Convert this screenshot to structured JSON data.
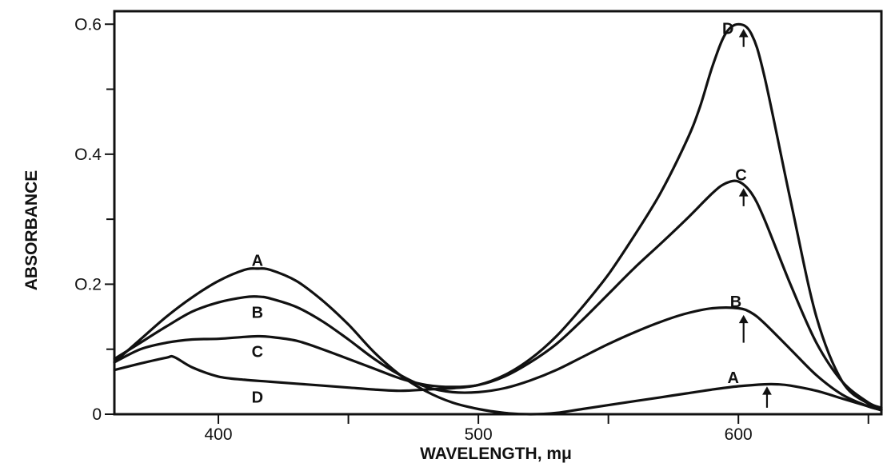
{
  "chart_data": {
    "type": "line",
    "xlabel": "WAVELENGTH, mμ",
    "ylabel": "ABSORBANCE",
    "xlim": [
      360,
      655
    ],
    "ylim": [
      0,
      0.62
    ],
    "x_ticks": [
      400,
      500,
      600
    ],
    "x_minor_ticks": [
      450,
      550,
      650
    ],
    "y_ticks": [
      {
        "value": 0,
        "label": "0"
      },
      {
        "value": 0.2,
        "label": "O.2"
      },
      {
        "value": 0.4,
        "label": "O.4"
      },
      {
        "value": 0.6,
        "label": "O.6"
      }
    ],
    "y_minor_ticks": [
      0.1,
      0.3,
      0.5
    ],
    "grid": false,
    "legend": "none",
    "series": [
      {
        "name": "A",
        "x": [
          360,
          370,
          380,
          390,
          400,
          410,
          415,
          420,
          430,
          440,
          450,
          460,
          470,
          480,
          490,
          500,
          510,
          520,
          530,
          540,
          550,
          560,
          570,
          580,
          590,
          600,
          610,
          615,
          620,
          630,
          640,
          650,
          655
        ],
        "y": [
          0.08,
          0.115,
          0.15,
          0.18,
          0.205,
          0.222,
          0.224,
          0.222,
          0.205,
          0.175,
          0.138,
          0.095,
          0.06,
          0.035,
          0.018,
          0.008,
          0.002,
          0.0,
          0.002,
          0.008,
          0.014,
          0.02,
          0.026,
          0.032,
          0.038,
          0.043,
          0.046,
          0.046,
          0.044,
          0.036,
          0.024,
          0.012,
          0.006
        ]
      },
      {
        "name": "B",
        "x": [
          360,
          370,
          380,
          390,
          400,
          410,
          415,
          420,
          430,
          440,
          450,
          460,
          470,
          480,
          490,
          500,
          510,
          520,
          530,
          540,
          550,
          560,
          570,
          580,
          590,
          600,
          605,
          610,
          620,
          630,
          640,
          650,
          655
        ],
        "y": [
          0.085,
          0.11,
          0.135,
          0.158,
          0.172,
          0.18,
          0.181,
          0.178,
          0.165,
          0.143,
          0.115,
          0.085,
          0.06,
          0.042,
          0.034,
          0.034,
          0.04,
          0.052,
          0.068,
          0.088,
          0.108,
          0.126,
          0.142,
          0.155,
          0.163,
          0.163,
          0.156,
          0.14,
          0.1,
          0.06,
          0.03,
          0.012,
          0.007
        ]
      },
      {
        "name": "C",
        "x": [
          360,
          370,
          380,
          390,
          400,
          410,
          415,
          420,
          430,
          440,
          450,
          460,
          470,
          480,
          490,
          500,
          510,
          520,
          530,
          540,
          550,
          560,
          570,
          580,
          590,
          595,
          600,
          605,
          610,
          620,
          630,
          640,
          650,
          655
        ],
        "y": [
          0.08,
          0.1,
          0.11,
          0.115,
          0.116,
          0.119,
          0.12,
          0.119,
          0.113,
          0.1,
          0.085,
          0.07,
          0.055,
          0.045,
          0.042,
          0.045,
          0.058,
          0.08,
          0.108,
          0.145,
          0.185,
          0.225,
          0.262,
          0.3,
          0.34,
          0.355,
          0.358,
          0.34,
          0.3,
          0.2,
          0.11,
          0.05,
          0.018,
          0.01
        ]
      },
      {
        "name": "D",
        "x": [
          360,
          370,
          380,
          383,
          390,
          400,
          410,
          420,
          430,
          440,
          450,
          460,
          470,
          480,
          490,
          500,
          510,
          520,
          530,
          540,
          550,
          560,
          570,
          580,
          585,
          590,
          595,
          600,
          605,
          610,
          620,
          630,
          640,
          650,
          655
        ],
        "y": [
          0.068,
          0.078,
          0.087,
          0.088,
          0.072,
          0.058,
          0.053,
          0.05,
          0.047,
          0.044,
          0.041,
          0.038,
          0.036,
          0.038,
          0.04,
          0.045,
          0.06,
          0.085,
          0.12,
          0.165,
          0.215,
          0.275,
          0.34,
          0.42,
          0.47,
          0.535,
          0.585,
          0.6,
          0.585,
          0.52,
          0.33,
          0.15,
          0.05,
          0.016,
          0.008
        ]
      }
    ],
    "curve_labels": [
      {
        "text": "A",
        "x": 415,
        "y": 0.228
      },
      {
        "text": "B",
        "x": 415,
        "y": 0.148
      },
      {
        "text": "C",
        "x": 415,
        "y": 0.088
      },
      {
        "text": "D",
        "x": 415,
        "y": 0.018
      },
      {
        "text": "D",
        "x": 596,
        "y": 0.585
      },
      {
        "text": "C",
        "x": 601,
        "y": 0.36
      },
      {
        "text": "B",
        "x": 599,
        "y": 0.165
      },
      {
        "text": "A",
        "x": 598,
        "y": 0.048
      }
    ],
    "peak_arrows": [
      {
        "series": "D",
        "x": 602,
        "y_from": 0.565,
        "y_to": 0.59
      },
      {
        "series": "C",
        "x": 602,
        "y_from": 0.32,
        "y_to": 0.345
      },
      {
        "series": "B",
        "x": 602,
        "y_from": 0.11,
        "y_to": 0.15
      },
      {
        "series": "A",
        "x": 611,
        "y_from": 0.01,
        "y_to": 0.04
      }
    ]
  }
}
